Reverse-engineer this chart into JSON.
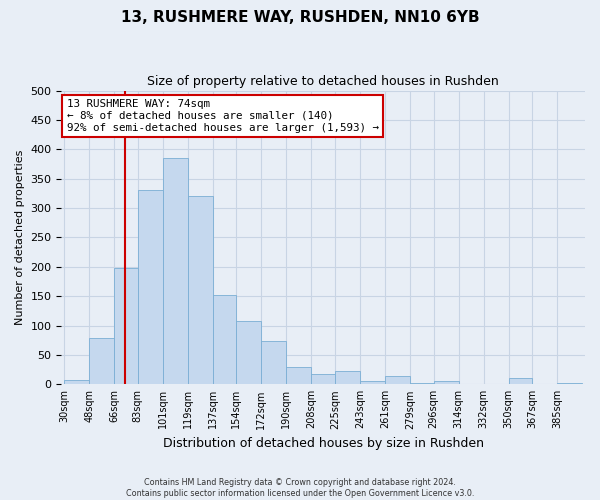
{
  "title": "13, RUSHMERE WAY, RUSHDEN, NN10 6YB",
  "subtitle": "Size of property relative to detached houses in Rushden",
  "xlabel": "Distribution of detached houses by size in Rushden",
  "ylabel": "Number of detached properties",
  "bar_labels": [
    "30sqm",
    "48sqm",
    "66sqm",
    "83sqm",
    "101sqm",
    "119sqm",
    "137sqm",
    "154sqm",
    "172sqm",
    "190sqm",
    "208sqm",
    "225sqm",
    "243sqm",
    "261sqm",
    "279sqm",
    "296sqm",
    "314sqm",
    "332sqm",
    "350sqm",
    "367sqm",
    "385sqm"
  ],
  "bar_values": [
    8,
    78,
    198,
    330,
    385,
    320,
    152,
    108,
    73,
    30,
    17,
    22,
    5,
    14,
    2,
    5,
    0,
    0,
    11,
    0,
    2
  ],
  "bar_color": "#c5d8ee",
  "bar_edge_color": "#7aaed4",
  "vline_color": "#cc0000",
  "annotation_line1": "13 RUSHMERE WAY: 74sqm",
  "annotation_line2": "← 8% of detached houses are smaller (140)",
  "annotation_line3": "92% of semi-detached houses are larger (1,593) →",
  "annotation_box_color": "#ffffff",
  "annotation_box_edge": "#cc0000",
  "ylim": [
    0,
    500
  ],
  "grid_color": "#c8d4e4",
  "bg_color": "#e8eef6",
  "footer1": "Contains HM Land Registry data © Crown copyright and database right 2024.",
  "footer2": "Contains public sector information licensed under the Open Government Licence v3.0."
}
